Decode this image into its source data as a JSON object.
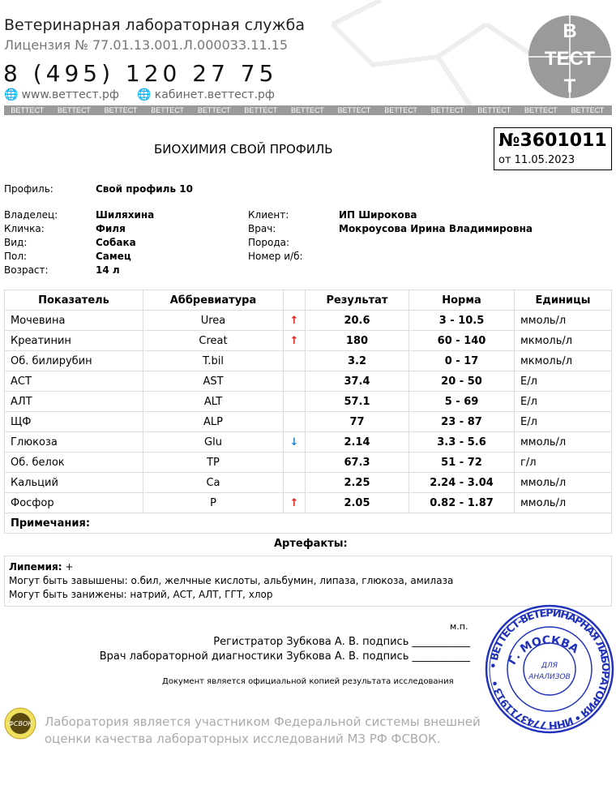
{
  "header": {
    "lab_name": "Ветеринарная лабораторная служба",
    "license": "Лицензия № 77.01.13.001.Л.000033.11.15",
    "phone": "8 (495) 120 27 75",
    "website": "www.веттест.рф",
    "cabinet": "кабинет.веттест.рф",
    "band_text": "ВЕТТЕСТ",
    "logo_text": "ВЕТТЕСТ"
  },
  "document": {
    "title": "БИОХИМИЯ СВОЙ ПРОФИЛЬ",
    "number": "№3601011",
    "date": "от 11.05.2023"
  },
  "info": {
    "profile_label": "Профиль:",
    "profile": "Свой профиль 10",
    "owner_label": "Владелец:",
    "owner": "Шиляхина",
    "nick_label": "Кличка:",
    "nick": "Филя",
    "species_label": "Вид:",
    "species": "Собака",
    "sex_label": "Пол:",
    "sex": "Самец",
    "age_label": "Возраст:",
    "age": "14 л",
    "client_label": "Клиент:",
    "client": "ИП Широкова",
    "doctor_label": "Врач:",
    "doctor": "Мокроусова Ирина Владимировна",
    "breed_label": "Порода:",
    "breed": "",
    "card_label": "Номер и/б:",
    "card": ""
  },
  "table": {
    "headers": [
      "Показатель",
      "Аббревиатура",
      "",
      "Результат",
      "Норма",
      "Единицы"
    ],
    "rows": [
      [
        "Мочевина",
        "Urea",
        "↑",
        "20.6",
        "3 - 10.5",
        "ммоль/л"
      ],
      [
        "Креатинин",
        "Creat",
        "↑",
        "180",
        "60 - 140",
        "мкмоль/л"
      ],
      [
        "Об. билирубин",
        "T.bil",
        "",
        "3.2",
        "0 - 17",
        "мкмоль/л"
      ],
      [
        "АСТ",
        "AST",
        "",
        "37.4",
        "20 - 50",
        "Е/л"
      ],
      [
        "АЛТ",
        "ALT",
        "",
        "57.1",
        "5 - 69",
        "Е/л"
      ],
      [
        "ЩФ",
        "ALP",
        "",
        "77",
        "23 - 87",
        "Е/л"
      ],
      [
        "Глюкоза",
        "Glu",
        "↓",
        "2.14",
        "3.3 - 5.6",
        "ммоль/л"
      ],
      [
        "Об. белок",
        "TP",
        "",
        "67.3",
        "51 - 72",
        "г/л"
      ],
      [
        "Кальций",
        "Ca",
        "",
        "2.25",
        "2.24 - 3.04",
        "ммоль/л"
      ],
      [
        "Фосфор",
        "P",
        "↑",
        "2.05",
        "0.82 - 1.87",
        "ммоль/л"
      ]
    ],
    "notes_label": "Примечания:"
  },
  "artifacts": {
    "title": "Артефакты:",
    "lipemia_label": "Липемия:",
    "lipemia": "+",
    "line1": "Могут быть завышены: о.бил, желчные кислоты, альбумин, липаза, глюкоза, амилаза",
    "line2": "Могут быть занижены: натрий, АСТ, АЛТ, ГГТ, хлор"
  },
  "signatures": {
    "registrar": "Регистратор Зубкова А. В. подпись ___________",
    "doctor": "Врач лабораторной диагностики Зубкова А. В. подпись ___________",
    "mp": "м.п.",
    "copy_note": "Документ является официальной копией результата исследования"
  },
  "stamp": {
    "outer": "ВЕТТЕСТ-ВЕТЕРИНАРНАЯ ЛАБОРАТОРИЯ",
    "city": "Г. МОСКВА",
    "inn": "ИНН 7743711913",
    "center": "ДЛЯ АНАЛИЗОВ"
  },
  "footer": {
    "fsvok_logo": "ФСВОК",
    "line1": "Лаборатория является участником Федеральной системы внешней",
    "line2": "оценки качества лабораторных исследований МЗ РФ ФСВОК."
  },
  "colors": {
    "arrow_up": "#dd2222",
    "arrow_down": "#2288cc",
    "stamp": "#2233bb"
  }
}
